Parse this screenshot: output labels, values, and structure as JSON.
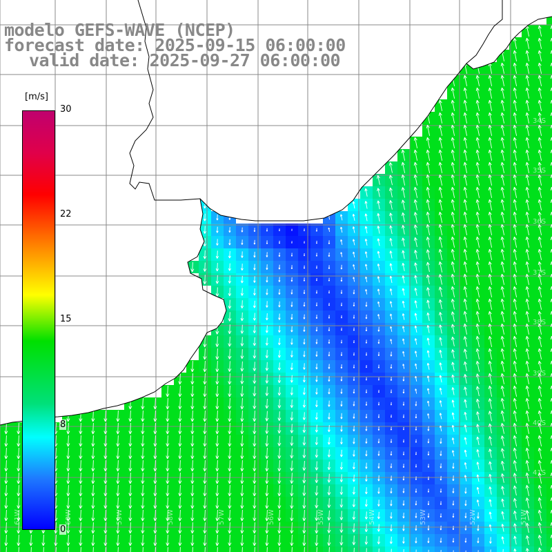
{
  "title": {
    "line1": "modelo GEFS-WAVE (NCEP)",
    "line2": "forecast date: 2025-09-15 06:00:00",
    "line3": "valid date: 2025-09-27 06:00:00"
  },
  "colorbar": {
    "unit": "[m/s]",
    "ticks": [
      "30",
      "22",
      "15",
      "8",
      "0"
    ],
    "tick_values": [
      30,
      22,
      15,
      8,
      0
    ],
    "min": 0,
    "max": 30,
    "colors": [
      "#0000ff",
      "#1e78ff",
      "#00ffff",
      "#00e07a",
      "#00e000",
      "#ffff00",
      "#ff8c00",
      "#ff0000",
      "#e0004a",
      "#c0006e"
    ]
  },
  "map": {
    "land_color": "#ffffff",
    "grid_color": "#888888",
    "coast_color": "#000000",
    "arrow_color": "#ffffff",
    "lon_labels": [
      "61W",
      "60W",
      "59W",
      "58W",
      "57W",
      "56W",
      "55W",
      "54W",
      "53W",
      "52W",
      "51W"
    ],
    "lat_labels": [
      "34S",
      "35S",
      "36S",
      "37S",
      "38S",
      "39S",
      "40S",
      "41S"
    ]
  }
}
